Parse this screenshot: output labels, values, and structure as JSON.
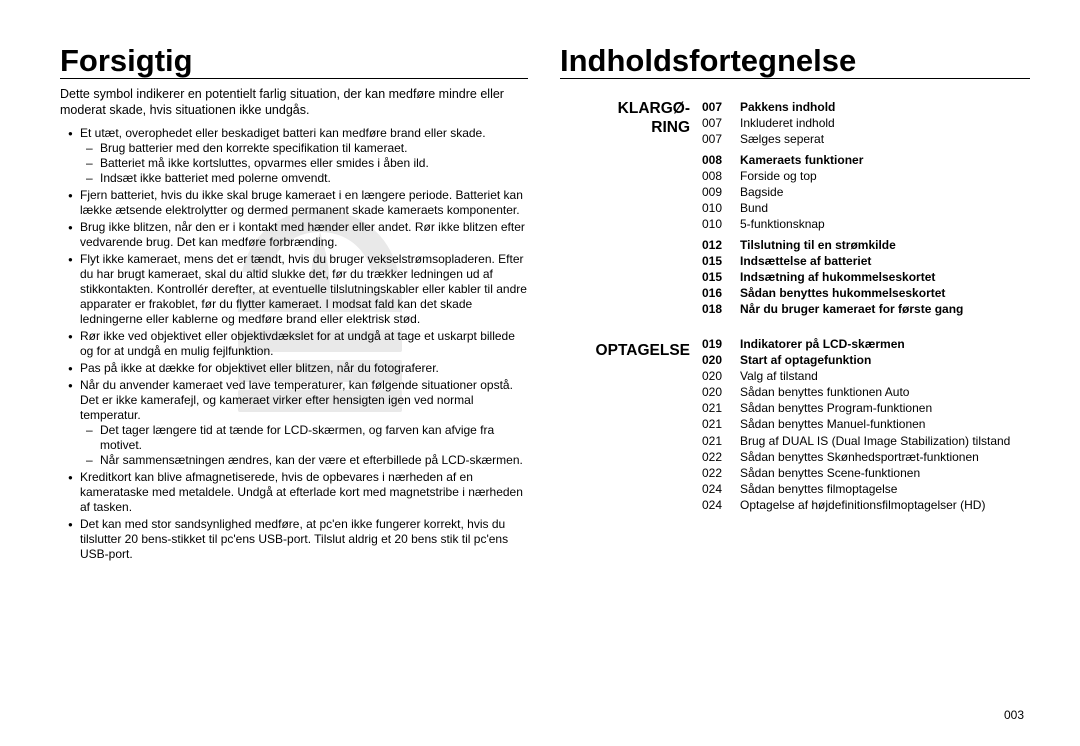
{
  "page_number": "003",
  "left": {
    "title": "Forsigtig",
    "intro": "Dette symbol indikerer en potentielt farlig situation, der kan medføre mindre eller moderat skade, hvis situationen ikke undgås.",
    "bullets": [
      {
        "text": "Et utæt, overophedet eller beskadiget batteri kan medføre brand eller skade.",
        "sub": [
          "Brug batterier med den korrekte specifikation til kameraet.",
          "Batteriet må ikke kortsluttes, opvarmes eller smides i åben ild.",
          "Indsæt ikke batteriet med polerne omvendt."
        ]
      },
      {
        "text": "Fjern batteriet, hvis du ikke skal bruge kameraet i en længere periode. Batteriet kan lække ætsende elektrolytter og dermed permanent skade kameraets komponenter."
      },
      {
        "text": "Brug ikke blitzen, når den er i kontakt med hænder eller andet. Rør ikke blitzen efter vedvarende brug. Det kan medføre forbrænding."
      },
      {
        "text": "Flyt ikke kameraet, mens det er tændt, hvis du bruger vekselstrømsopladeren. Efter du har brugt kameraet, skal du altid slukke det, før du trækker ledningen ud af stikkontakten. Kontrollér derefter, at eventuelle tilslutningskabler eller kabler til andre apparater er frakoblet, før du flytter kameraet. I modsat fald kan det skade ledningerne eller kablerne og medføre brand eller elektrisk stød."
      },
      {
        "text": "Rør ikke ved objektivet eller objektivdækslet for at undgå at tage et uskarpt billede og for at undgå en mulig fejlfunktion."
      },
      {
        "text": "Pas på ikke at dække for objektivet eller blitzen, når du fotograferer."
      },
      {
        "text": "Når du anvender kameraet ved lave temperaturer, kan følgende situationer opstå. Det er ikke kamerafejl, og kameraet virker efter hensigten igen ved normal temperatur.",
        "sub": [
          "Det tager længere tid at tænde for LCD-skærmen, og farven kan afvige fra motivet.",
          "Når sammensætningen ændres, kan der være et efterbillede på LCD-skærmen."
        ]
      },
      {
        "text": "Kreditkort kan blive afmagnetiserede, hvis de opbevares i nærheden af en kamerataske med metaldele. Undgå at efterlade kort med magnetstribe i nærheden af tasken."
      },
      {
        "text": "Det kan med stor sandsynlighed medføre, at pc'en ikke fungerer korrekt, hvis du tilslutter 20 bens-stikket til pc'ens USB-port. Tilslut aldrig et 20 bens stik til pc'ens USB-port."
      }
    ]
  },
  "right": {
    "title": "Indholdsfortegnelse",
    "sections": [
      {
        "heading_lines": [
          "KLARGØ-",
          "RING"
        ],
        "block": 0
      },
      {
        "heading_lines": [
          "OPTAGELSE"
        ],
        "block": 1
      }
    ],
    "blocks": [
      [
        {
          "num": "007",
          "label": "Pakkens indhold",
          "bold": true
        },
        {
          "num": "007",
          "label": "Inkluderet indhold"
        },
        {
          "num": "007",
          "label": "Sælges seperat"
        },
        {
          "spacer": true
        },
        {
          "num": "008",
          "label": "Kameraets funktioner",
          "bold": true
        },
        {
          "num": "008",
          "label": "Forside og top"
        },
        {
          "num": "009",
          "label": "Bagside"
        },
        {
          "num": "010",
          "label": "Bund"
        },
        {
          "num": "010",
          "label": "5-funktionsknap"
        },
        {
          "spacer": true
        },
        {
          "num": "012",
          "label": "Tilslutning til en strømkilde",
          "bold": true
        },
        {
          "num": "015",
          "label": "Indsættelse af batteriet",
          "bold": true
        },
        {
          "num": "015",
          "label": "Indsætning af hukommelseskortet",
          "bold": true
        },
        {
          "num": "016",
          "label": "Sådan benyttes hukommelseskortet",
          "bold": true
        },
        {
          "num": "018",
          "label": "Når du bruger kameraet for første gang",
          "bold": true
        }
      ],
      [
        {
          "num": "019",
          "label": "Indikatorer på LCD-skærmen",
          "bold": true
        },
        {
          "num": "020",
          "label": "Start af optagefunktion",
          "bold": true
        },
        {
          "num": "020",
          "label": "Valg af tilstand"
        },
        {
          "num": "020",
          "label": "Sådan benyttes funktionen Auto"
        },
        {
          "num": "021",
          "label": "Sådan benyttes Program-funktionen"
        },
        {
          "num": "021",
          "label": "Sådan benyttes Manuel-funktionen"
        },
        {
          "num": "021",
          "label": "Brug af DUAL IS (Dual Image Stabilization) tilstand"
        },
        {
          "num": "022",
          "label": "Sådan benyttes Skønhedsportræt-funktionen"
        },
        {
          "num": "022",
          "label": "Sådan benyttes Scene-funktionen"
        },
        {
          "num": "024",
          "label": "Sådan benyttes filmoptagelse"
        },
        {
          "num": "024",
          "label": "Optagelse af højdefinitionsfilmoptagelser (HD)"
        }
      ]
    ]
  },
  "watermark_color": "#e9e9e9"
}
